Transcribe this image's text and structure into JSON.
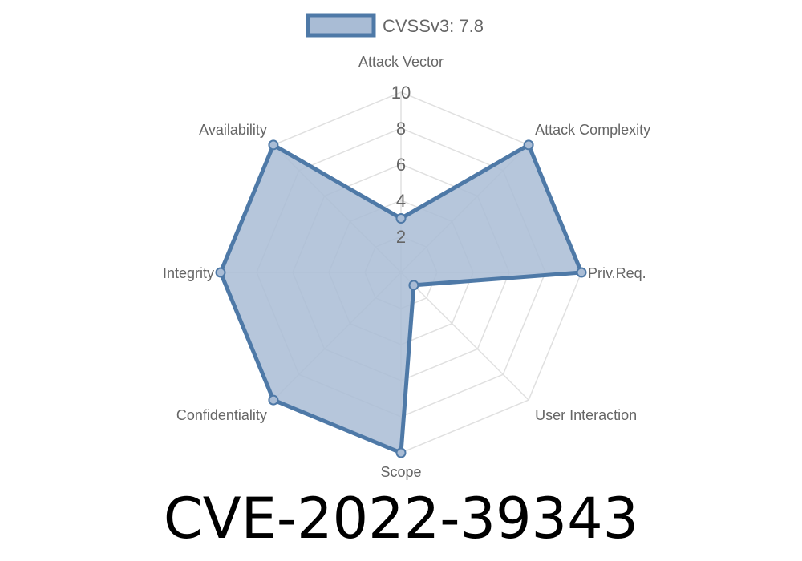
{
  "chart_data": {
    "type": "radar",
    "legend": {
      "label": "CVSSv3: 7.8",
      "position": "top"
    },
    "axes": [
      "Attack Vector",
      "Attack Complexity",
      "Priv.Req.",
      "User Interaction",
      "Scope",
      "Confidentiality",
      "Integrity",
      "Availability"
    ],
    "series": [
      {
        "name": "CVSSv3: 7.8",
        "values": [
          3,
          10,
          10,
          1,
          10,
          10,
          10,
          10
        ]
      }
    ],
    "range": [
      0,
      10
    ],
    "ticks": [
      "2",
      "4",
      "6",
      "8",
      "10"
    ],
    "grid": true,
    "colors": {
      "line": "#4e79a7",
      "fill": "#a9bcd5",
      "grid": "#e0e0e0",
      "text": "#666666"
    }
  },
  "title": "CVE-2022-39343"
}
